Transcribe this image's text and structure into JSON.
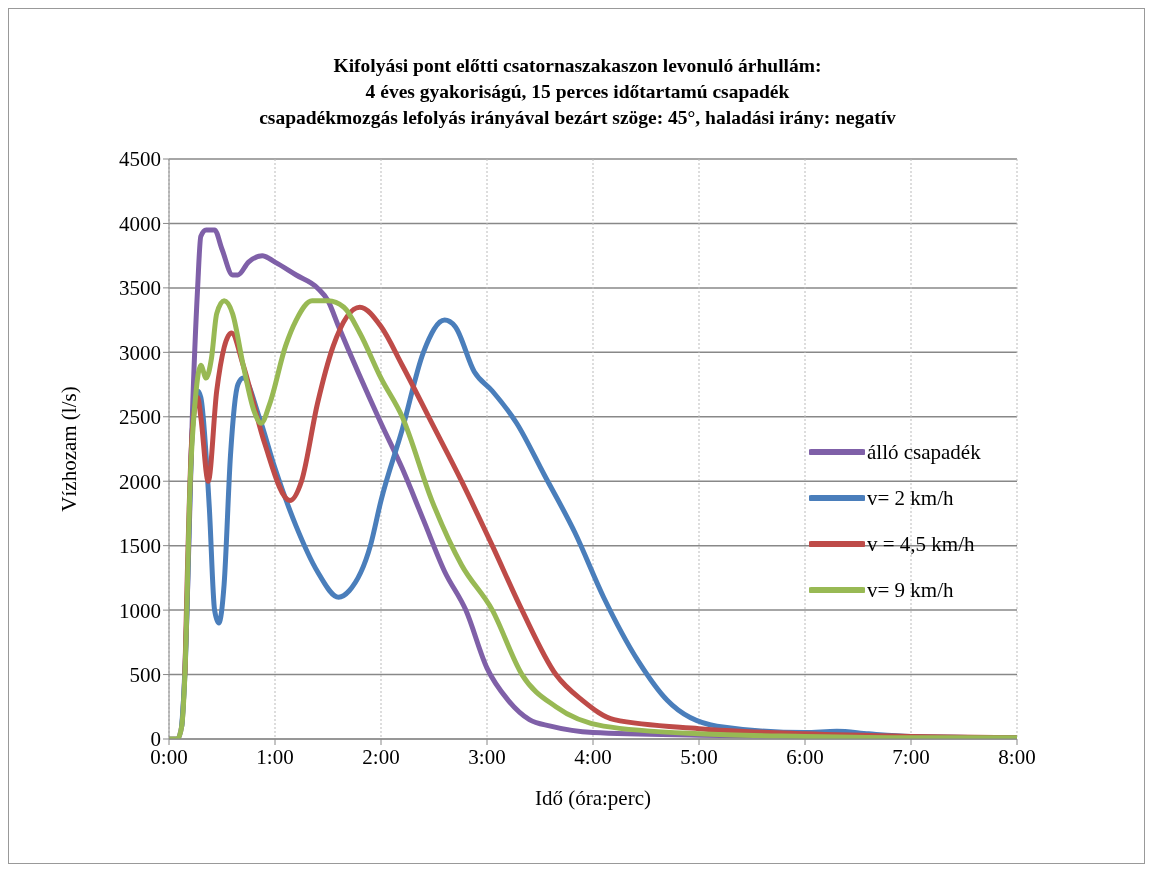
{
  "chart_data": {
    "type": "line",
    "title": "Kifolyási pont előtti csatornaszakaszon levonuló árhullám:\n4 éves gyakoriságú,  15 perces  időtartamú csapadék\ncsapadékmozgás lefolyás irányával bezárt szöge: 45°, haladási irány: negatív",
    "xlabel": "Idő (óra:perc)",
    "ylabel": "Vízhozam (l/s)",
    "xlim": [
      0,
      8
    ],
    "xticks": [
      {
        "value": 0,
        "label": "0:00"
      },
      {
        "value": 1,
        "label": "1:00"
      },
      {
        "value": 2,
        "label": "2:00"
      },
      {
        "value": 3,
        "label": "3:00"
      },
      {
        "value": 4,
        "label": "4:00"
      },
      {
        "value": 5,
        "label": "5:00"
      },
      {
        "value": 6,
        "label": "6:00"
      },
      {
        "value": 7,
        "label": "7:00"
      },
      {
        "value": 8,
        "label": "8:00"
      }
    ],
    "ylim": [
      0,
      4500
    ],
    "yticks": [
      0,
      500,
      1000,
      1500,
      2000,
      2500,
      3000,
      3500,
      4000,
      4500
    ],
    "grid": true,
    "legend": "right",
    "marker": "none",
    "line_style": "solid",
    "series": [
      {
        "name": "álló csapadék",
        "color": "#7f60a8",
        "x": [
          0,
          0.08,
          0.12,
          0.17,
          0.22,
          0.27,
          0.3,
          0.35,
          0.43,
          0.5,
          0.6,
          0.65,
          0.75,
          0.88,
          1.0,
          1.2,
          1.4,
          1.5,
          1.6,
          2.0,
          2.2,
          2.4,
          2.6,
          2.8,
          3.0,
          3.2,
          3.4,
          3.6,
          4.0,
          5.0,
          6.0,
          7.0,
          8.0
        ],
        "values": [
          0,
          0,
          100,
          1000,
          2500,
          3500,
          3900,
          3950,
          3950,
          3800,
          3600,
          3600,
          3700,
          3750,
          3700,
          3600,
          3500,
          3400,
          3200,
          2450,
          2100,
          1700,
          1300,
          1000,
          550,
          300,
          150,
          100,
          50,
          30,
          20,
          10,
          10
        ]
      },
      {
        "name": "v= 2 km/h",
        "color": "#4a7ebb",
        "x": [
          0.12,
          0.15,
          0.22,
          0.27,
          0.3,
          0.38,
          0.43,
          0.47,
          0.52,
          0.58,
          0.65,
          0.7,
          0.85,
          1.0,
          1.2,
          1.4,
          1.6,
          1.7,
          1.9,
          2.0,
          2.2,
          2.4,
          2.6,
          2.7,
          2.88,
          3.05,
          3.28,
          3.54,
          3.83,
          4.1,
          4.43,
          4.7,
          5.17,
          6.0,
          6.3,
          6.6,
          7.0,
          8.0
        ],
        "values": [
          100,
          500,
          2400,
          2700,
          2650,
          1800,
          1000,
          900,
          1200,
          2200,
          2750,
          2800,
          2500,
          2100,
          1650,
          1300,
          1100,
          1150,
          1500,
          1850,
          2400,
          3000,
          3250,
          3200,
          2850,
          2700,
          2450,
          2050,
          1600,
          1100,
          600,
          300,
          100,
          50,
          60,
          40,
          20,
          10
        ]
      },
      {
        "name": "v = 4,5 km/h",
        "color": "#be4b48",
        "x": [
          0.15,
          0.22,
          0.27,
          0.3,
          0.37,
          0.45,
          0.59,
          0.7,
          0.9,
          1.14,
          1.25,
          1.4,
          1.55,
          1.8,
          2.0,
          2.2,
          2.48,
          2.76,
          3.05,
          3.33,
          3.65,
          3.9,
          4.2,
          5.0,
          6.0,
          7.0,
          8.0
        ],
        "values": [
          500,
          2400,
          2650,
          2500,
          2000,
          2700,
          3150,
          2900,
          2300,
          1850,
          2000,
          2600,
          3050,
          3350,
          3200,
          2900,
          2450,
          2000,
          1500,
          1000,
          500,
          300,
          150,
          80,
          40,
          20,
          10
        ]
      },
      {
        "name": "v= 9 km/h",
        "color": "#98b954",
        "x": [
          0,
          0.08,
          0.12,
          0.15,
          0.2,
          0.25,
          0.3,
          0.35,
          0.4,
          0.45,
          0.52,
          0.6,
          0.7,
          0.8,
          0.87,
          0.95,
          1.1,
          1.2,
          1.35,
          1.5,
          1.65,
          1.8,
          2.0,
          2.2,
          2.48,
          2.76,
          3.05,
          3.33,
          3.65,
          4.1,
          5.0,
          6.0,
          7.0,
          8.0
        ],
        "values": [
          0,
          0,
          100,
          500,
          2000,
          2650,
          2900,
          2800,
          2950,
          3300,
          3400,
          3300,
          2900,
          2550,
          2450,
          2600,
          3050,
          3250,
          3400,
          3400,
          3350,
          3150,
          2800,
          2500,
          1850,
          1350,
          1000,
          500,
          250,
          100,
          40,
          20,
          10,
          10
        ]
      }
    ]
  }
}
